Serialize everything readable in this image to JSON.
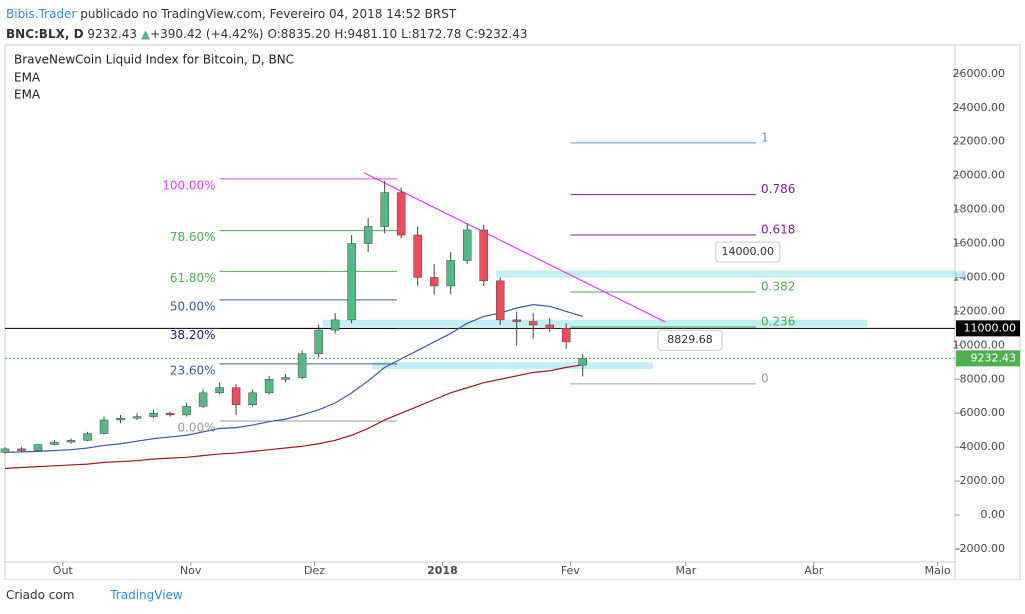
{
  "header": {
    "author": "Bibis.Trader",
    "published": "publicado no TradingView.com, Fevereiro 04, 2018 14:52 BRST",
    "symbol": "BNC:BLX, D",
    "last": "9232.43",
    "change": "+390.42 (+4.42%)",
    "ohlc": [
      [
        "O:",
        "8835.20"
      ],
      [
        "H:",
        "9481.10"
      ],
      [
        "L:",
        "8172.78"
      ],
      [
        "C:",
        "9232.43"
      ]
    ]
  },
  "footer": {
    "made_with": "Criado com",
    "brand": "TradingView"
  },
  "chart_data": {
    "type": "candlestick",
    "title": "BraveNewCoin Liquid Index for Bitcoin, D, BNC",
    "up_color": "#53b987",
    "down_color": "#eb4d5c",
    "x": [
      0,
      4,
      8,
      12,
      16,
      20,
      24,
      28,
      32,
      36,
      40,
      44,
      48,
      52,
      56,
      60,
      64,
      68,
      72,
      76,
      80,
      84,
      88,
      92,
      96,
      100,
      104,
      108,
      112,
      116,
      120,
      124,
      128,
      132,
      136,
      140
    ],
    "open": [
      3700,
      3900,
      3800,
      4150,
      4300,
      4400,
      4800,
      5600,
      5700,
      5800,
      6000,
      5900,
      6400,
      7200,
      7500,
      6500,
      7200,
      8000,
      8100,
      9500,
      10900,
      11500,
      16000,
      17000,
      19000,
      16500,
      14000,
      13500,
      15000,
      16800,
      13800,
      11500,
      11400,
      11200,
      11000,
      8835.2
    ],
    "high": [
      4000,
      4000,
      4200,
      4400,
      4500,
      4900,
      5800,
      5900,
      6000,
      6200,
      6100,
      6600,
      7400,
      7800,
      7700,
      7400,
      8200,
      8300,
      9700,
      11200,
      11900,
      16500,
      17500,
      19700,
      19300,
      17000,
      14800,
      15500,
      17200,
      17100,
      14000,
      12000,
      11900,
      11600,
      11300,
      9481.1
    ],
    "low": [
      3600,
      3700,
      3750,
      4100,
      4200,
      4350,
      4750,
      5400,
      5600,
      5700,
      5800,
      5800,
      6300,
      7100,
      5900,
      6400,
      7100,
      7800,
      8000,
      9300,
      10700,
      11300,
      15500,
      16600,
      16300,
      13500,
      13000,
      13000,
      14800,
      13500,
      11200,
      10000,
      10400,
      10800,
      9800,
      8172.78
    ],
    "close": [
      3900,
      3800,
      4150,
      4300,
      4400,
      4800,
      5600,
      5700,
      5800,
      6000,
      5900,
      6400,
      7200,
      7500,
      6500,
      7200,
      8000,
      8100,
      9500,
      10900,
      11500,
      16000,
      17000,
      19000,
      16500,
      14000,
      13500,
      15000,
      16800,
      13800,
      11500,
      11400,
      11200,
      11000,
      10200,
      9232.43
    ],
    "series": [
      {
        "name": "EMA",
        "color": "#3a5ba8",
        "values": [
          3700,
          3720,
          3750,
          3800,
          3850,
          3950,
          4100,
          4200,
          4350,
          4500,
          4600,
          4700,
          4900,
          5100,
          5150,
          5300,
          5500,
          5650,
          5900,
          6200,
          6600,
          7200,
          7900,
          8700,
          9200,
          9700,
          10200,
          10700,
          11300,
          11700,
          11900,
          12200,
          12400,
          12300,
          12000,
          11700
        ]
      },
      {
        "name": "EMA",
        "color": "#9b1d1d",
        "values": [
          2750,
          2800,
          2850,
          2900,
          2950,
          3000,
          3100,
          3150,
          3200,
          3300,
          3350,
          3400,
          3500,
          3600,
          3650,
          3750,
          3850,
          3950,
          4050,
          4200,
          4400,
          4700,
          5100,
          5600,
          6000,
          6400,
          6800,
          7200,
          7500,
          7800,
          8000,
          8200,
          8400,
          8500,
          8700,
          8850
        ]
      }
    ],
    "xlim": [
      0,
      229
    ],
    "ylim": [
      -2770,
      27700
    ],
    "xticks": [
      {
        "value": 14,
        "label": "Out"
      },
      {
        "value": 45,
        "label": "Nov"
      },
      {
        "value": 75,
        "label": "Dez"
      },
      {
        "value": 106,
        "label": "2018"
      },
      {
        "value": 137,
        "label": "Fev"
      },
      {
        "value": 165,
        "label": "Mar"
      },
      {
        "value": 196,
        "label": "Abr"
      },
      {
        "value": 226,
        "label": "Maio"
      }
    ],
    "yticks": [
      {
        "value": -2000,
        "label": "-2000.00"
      },
      {
        "value": 0,
        "label": "0.00"
      },
      {
        "value": 2000,
        "label": "2000.00"
      },
      {
        "value": 4000,
        "label": "4000.00"
      },
      {
        "value": 6000,
        "label": "6000.00"
      },
      {
        "value": 8000,
        "label": "8000.00"
      },
      {
        "value": 10000,
        "label": "10000.00"
      },
      {
        "value": 12000,
        "label": "12000.00"
      },
      {
        "value": 14000,
        "label": "14000.00"
      },
      {
        "value": 16000,
        "label": "16000.00"
      },
      {
        "value": 18000,
        "label": "18000.00"
      },
      {
        "value": 20000,
        "label": "20000.00"
      },
      {
        "value": 22000,
        "label": "22000.00"
      },
      {
        "value": 24000,
        "label": "24000.00"
      },
      {
        "value": 26000,
        "label": "26000.00"
      }
    ],
    "price_lines": [
      {
        "value": 11000,
        "label": "11000.00",
        "color": "#000000"
      },
      {
        "value": 9232.43,
        "label": "9232.43",
        "color": "#4caf50"
      }
    ],
    "fib_retracement": {
      "x": [
        52,
        95
      ],
      "levels": [
        {
          "label": "100.00%",
          "price": 19810,
          "color": "#e040fb"
        },
        {
          "label": "78.60%",
          "price": 16760,
          "color": "#4caf50"
        },
        {
          "label": "61.80%",
          "price": 14360,
          "color": "#4caf50"
        },
        {
          "label": "50.00%",
          "price": 12680,
          "color": "#3a5ba8"
        },
        {
          "label": "38.20%",
          "price": 10990,
          "color": "#1a237e"
        },
        {
          "label": "23.60%",
          "price": 8910,
          "color": "#3a5ba8"
        },
        {
          "label": "0.00%",
          "price": 5540,
          "color": "#9e9e9e"
        }
      ]
    },
    "fib_extension": {
      "x": [
        137,
        182
      ],
      "levels": [
        {
          "label": "1",
          "price": 21935,
          "color": "#5b9bd5"
        },
        {
          "label": "0.786",
          "price": 18880,
          "color": "#7b1fa2"
        },
        {
          "label": "0.618",
          "price": 16500,
          "color": "#7b1fa2"
        },
        {
          "label": "0.382",
          "price": 13140,
          "color": "#4caf50"
        },
        {
          "label": "0.236",
          "price": 11080,
          "color": "#4caf50"
        },
        {
          "label": "0",
          "price": 7725,
          "color": "#9e9e9e"
        }
      ]
    },
    "zones": [
      {
        "x": [
          119,
          233
        ],
        "price": 14200
      },
      {
        "x": [
          77,
          209
        ],
        "price": 11300
      },
      {
        "x": [
          89,
          157
        ],
        "price": 8800
      }
    ],
    "trendline": {
      "x": [
        87,
        160
      ],
      "price": [
        20170,
        11380
      ],
      "color": "#e040fb"
    },
    "callouts": [
      {
        "label": "14000.00",
        "x": 180,
        "price": 15500
      },
      {
        "label": "8829.68",
        "x": 166,
        "price": 10300
      }
    ]
  }
}
